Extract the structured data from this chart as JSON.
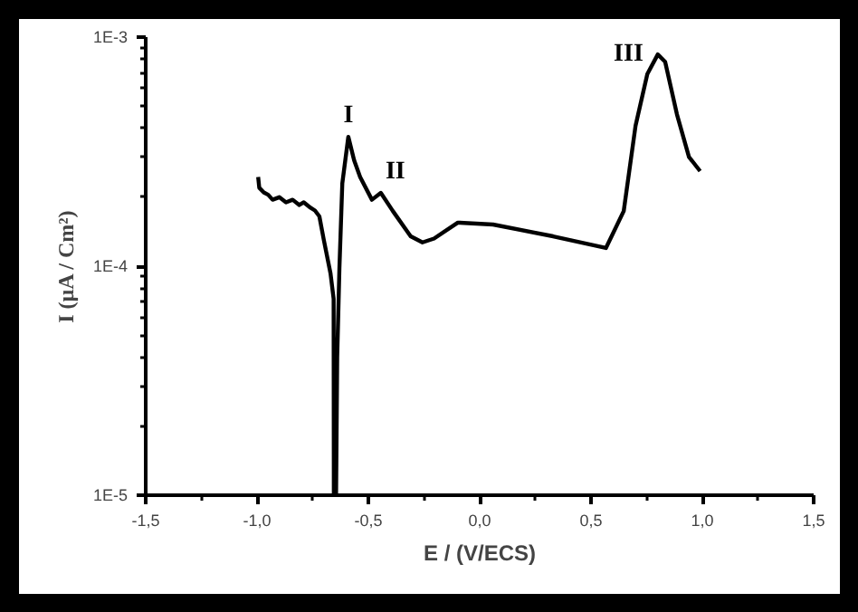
{
  "chart_data": {
    "type": "line",
    "xlabel": "E / (V/ECS)",
    "ylabel": "I (µA / Cm²)",
    "log": "y",
    "grid": false,
    "marker": "none",
    "line_style": "solid",
    "xlim": [
      -1.5,
      1.5
    ],
    "ylim": [
      1e-05,
      0.001
    ],
    "xticks": [
      {
        "value": -1.5,
        "label": "-1,5"
      },
      {
        "value": -1.0,
        "label": "-1,0"
      },
      {
        "value": -0.5,
        "label": "-0,5"
      },
      {
        "value": 0.0,
        "label": "0,0"
      },
      {
        "value": 0.5,
        "label": "0,5"
      },
      {
        "value": 1.0,
        "label": "1,0"
      },
      {
        "value": 1.5,
        "label": "1,5"
      }
    ],
    "yticks": [
      {
        "value": 1e-05,
        "label": "1E-5"
      },
      {
        "value": 0.0001,
        "label": "1E-4"
      },
      {
        "value": 0.001,
        "label": "1E-3"
      }
    ],
    "series": [
      {
        "color": "#000000",
        "x": [
          -0.995,
          -0.99,
          -0.97,
          -0.95,
          -0.93,
          -0.9,
          -0.87,
          -0.84,
          -0.81,
          -0.79,
          -0.76,
          -0.74,
          -0.72,
          -0.7,
          -0.67,
          -0.656,
          -0.655,
          -0.645,
          -0.64,
          -0.63,
          -0.617,
          -0.59,
          -0.564,
          -0.537,
          -0.484,
          -0.444,
          -0.39,
          -0.31,
          -0.257,
          -0.205,
          -0.098,
          0.06,
          0.33,
          0.567,
          0.647,
          0.7,
          0.753,
          0.8,
          0.833,
          0.886,
          0.94,
          0.99
        ],
        "values": [
          0.000245,
          0.00022,
          0.00021,
          0.000205,
          0.000195,
          0.0002,
          0.00019,
          0.000195,
          0.000185,
          0.00019,
          0.00018,
          0.000175,
          0.000165,
          0.00013,
          9.3e-05,
          7.2e-05,
          1e-05,
          1e-05,
          4e-05,
          9.8e-05,
          0.00023,
          0.000367,
          0.00029,
          0.000245,
          0.000195,
          0.000209,
          0.000174,
          0.000135,
          0.000127,
          0.000132,
          0.000155,
          0.000152,
          0.000135,
          0.00012,
          0.000174,
          0.00041,
          0.00069,
          0.00084,
          0.00078,
          0.00046,
          0.0003,
          0.00026
        ]
      }
    ],
    "annotations": [
      {
        "text": "I",
        "x": -0.59,
        "y": 0.000367
      },
      {
        "text": "II",
        "x": -0.444,
        "y": 0.000209
      },
      {
        "text": "III",
        "x": 0.8,
        "y": 0.00084
      }
    ]
  }
}
